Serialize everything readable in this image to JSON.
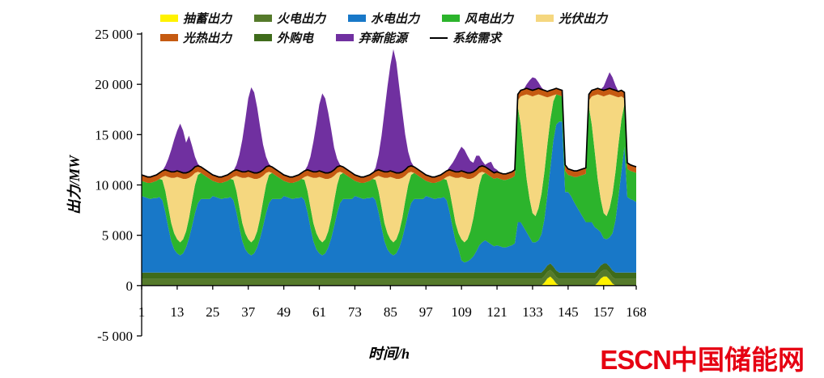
{
  "watermark": {
    "escn": "ESCN",
    "site": "中国储能网",
    "color": "#e60012"
  },
  "chart_data": {
    "type": "area",
    "stacked": true,
    "title": "",
    "xlabel": "时间/h",
    "ylabel": "出力/MW",
    "x_start": 1,
    "x_end": 168,
    "ylim": [
      -5000,
      25000
    ],
    "grid": false,
    "legend_position": "top",
    "x_ticks": [
      1,
      13,
      25,
      37,
      49,
      61,
      73,
      85,
      97,
      109,
      121,
      133,
      145,
      157,
      168
    ],
    "y_ticks": [
      -5000,
      0,
      5000,
      10000,
      15000,
      20000,
      25000
    ],
    "y_tick_labels": [
      "-5 000",
      "0",
      "5 000",
      "10 000",
      "15 000",
      "20 000",
      "25 000"
    ],
    "legend_rows": [
      [
        "pumped-storage-output",
        "thermal-output",
        "hydro-output",
        "wind-output",
        "pv-output"
      ],
      [
        "csp-output",
        "purchased-power",
        "curtailed-renewable",
        "system-demand"
      ]
    ],
    "series": [
      {
        "id": "pumped-storage-output",
        "label": "抽蓄出力",
        "color": "#fff200",
        "type": "area",
        "values": {
          "default": 0,
          "segments": [
            {
              "start": 137,
              "values": [
                300,
                700,
                900,
                600,
                200
              ]
            },
            {
              "start": 155,
              "values": [
                300,
                700,
                900,
                900,
                600,
                200
              ]
            }
          ]
        }
      },
      {
        "id": "thermal-output",
        "label": "火电出力",
        "color": "#557a2b",
        "type": "area",
        "values": 650
      },
      {
        "id": "purchased-power",
        "label": "外购电",
        "color": "#3f6b1b",
        "type": "area",
        "values": 650
      },
      {
        "id": "hydro-output",
        "label": "水电出力",
        "color": "#1878c8",
        "type": "area",
        "values": [
          7600,
          7500,
          7400,
          7300,
          7400,
          7400,
          7500,
          7200,
          6000,
          4500,
          3100,
          2300,
          1900,
          1700,
          1900,
          2500,
          3400,
          4600,
          5900,
          6900,
          7300,
          7300,
          7300,
          7300,
          7600,
          7500,
          7400,
          7300,
          7400,
          7400,
          7500,
          7200,
          6000,
          4500,
          3100,
          2300,
          1900,
          1700,
          1900,
          2500,
          3400,
          4600,
          5900,
          6900,
          7300,
          7300,
          7300,
          7300,
          7600,
          7500,
          7400,
          7300,
          7400,
          7400,
          7500,
          7200,
          6000,
          4500,
          3100,
          2300,
          1900,
          1700,
          1900,
          2500,
          3400,
          4600,
          5900,
          6900,
          7300,
          7300,
          7300,
          7300,
          7600,
          7500,
          7400,
          7300,
          7400,
          7400,
          7500,
          7200,
          6000,
          4500,
          3100,
          2300,
          1900,
          1700,
          1900,
          2500,
          3400,
          4600,
          5900,
          6900,
          7300,
          7300,
          7300,
          7300,
          7600,
          7500,
          7400,
          7300,
          7400,
          7400,
          7500,
          7200,
          6000,
          4500,
          3100,
          2300,
          1200,
          1000,
          1100,
          1300,
          1600,
          2100,
          2700,
          3000,
          3200,
          3000,
          2800,
          2600,
          2700,
          2600,
          2500,
          2500,
          2600,
          2700,
          2900,
          5000,
          5000,
          4500,
          4000,
          3500,
          3000,
          3000,
          3200,
          3800,
          5000,
          7000,
          9500,
          12500,
          14500,
          15000,
          15000,
          8000,
          8000,
          7600,
          7000,
          6500,
          6000,
          5500,
          5000,
          5000,
          5000,
          4500,
          4000,
          3300,
          2500,
          2400,
          2900,
          3700,
          5200,
          7500,
          10000,
          12500,
          7500,
          7300,
          7200,
          7000
        ]
      },
      {
        "id": "wind-output",
        "label": "风电出力",
        "color": "#2cb42c",
        "type": "area",
        "values": [
          1500,
          1500,
          1500,
          1600,
          1600,
          1700,
          1800,
          2000,
          2100,
          2000,
          1800,
          1600,
          1400,
          1300,
          1400,
          1600,
          2000,
          2500,
          2800,
          2800,
          2600,
          2400,
          2200,
          2000,
          1500,
          1500,
          1500,
          1600,
          1600,
          1700,
          1800,
          2000,
          2100,
          2000,
          1800,
          1600,
          1400,
          1300,
          1400,
          1600,
          2000,
          2500,
          2800,
          2800,
          2600,
          2400,
          2200,
          2000,
          1500,
          1500,
          1500,
          1600,
          1600,
          1700,
          1800,
          2000,
          2100,
          2000,
          1800,
          1600,
          1400,
          1300,
          1400,
          1600,
          2000,
          2500,
          2800,
          2800,
          2600,
          2400,
          2200,
          2000,
          1500,
          1500,
          1500,
          1600,
          1600,
          1700,
          1800,
          2000,
          2100,
          2000,
          1800,
          1600,
          1400,
          1300,
          1400,
          1600,
          2000,
          2500,
          2800,
          2800,
          2600,
          2400,
          2200,
          2000,
          1500,
          1500,
          1500,
          1600,
          1600,
          1700,
          1800,
          2000,
          2100,
          2000,
          1800,
          1600,
          2100,
          2000,
          2200,
          2800,
          3800,
          5000,
          6000,
          6700,
          6700,
          6700,
          6700,
          6700,
          6700,
          6700,
          6700,
          6700,
          6700,
          6700,
          6700,
          11500,
          9700,
          7500,
          5300,
          3800,
          2900,
          2600,
          3200,
          4000,
          4700,
          5000,
          4800,
          3900,
          3000,
          2600,
          2500,
          2100,
          1700,
          2000,
          2500,
          3000,
          3600,
          4200,
          4800,
          11500,
          9700,
          7500,
          5000,
          3300,
          2500,
          2300,
          2900,
          3900,
          4800,
          5200,
          5200,
          4200,
          2800,
          2800,
          2800,
          2900
        ]
      },
      {
        "id": "pv-output",
        "label": "光伏出力",
        "color": "#f5d77f",
        "type": "area",
        "values": {
          "default": 0,
          "segments": [
            {
              "start": 8,
              "values": [
                300,
                1500,
                3000,
                4500,
                5500,
                6200,
                6400,
                6000,
                5200,
                4000,
                2500,
                1200,
                300
              ]
            },
            {
              "start": 32,
              "values": [
                300,
                1500,
                3000,
                4500,
                5500,
                6200,
                6400,
                6000,
                5200,
                4000,
                2500,
                1200,
                300
              ]
            },
            {
              "start": 56,
              "values": [
                300,
                1500,
                3000,
                4500,
                5500,
                6200,
                6400,
                6000,
                5200,
                4000,
                2500,
                1200,
                300
              ]
            },
            {
              "start": 80,
              "values": [
                300,
                1500,
                3000,
                4500,
                5500,
                6200,
                6400,
                6000,
                5200,
                4000,
                2500,
                1200,
                300
              ]
            },
            {
              "start": 104,
              "values": [
                300,
                1500,
                3000,
                4500,
                5500,
                6200,
                6400,
                6000,
                5200,
                4000,
                2500,
                1200,
                300
              ]
            },
            {
              "start": 128,
              "values": [
                600,
                2800,
                5600,
                8400,
                10300,
                11600,
                12000,
                11300,
                9800,
                7500,
                4700,
                2300,
                600
              ]
            },
            {
              "start": 152,
              "values": [
                600,
                2800,
                5600,
                8400,
                10300,
                11600,
                12000,
                11300,
                9800,
                7500,
                4700,
                2300,
                600
              ]
            }
          ]
        }
      },
      {
        "id": "csp-output",
        "label": "光热出力",
        "color": "#c55a11",
        "type": "area",
        "values": 600
      },
      {
        "id": "curtailed-renewable",
        "label": "弃新能源",
        "color": "#7030a0",
        "type": "area",
        "values": {
          "default": 0,
          "segments": [
            {
              "start": 9,
              "values": [
                400,
                1200,
                2200,
                3200,
                4000,
                4800,
                4200,
                3000,
                3600,
                2400,
                1000,
                200
              ]
            },
            {
              "start": 33,
              "values": [
                500,
                1600,
                3200,
                5200,
                7200,
                8400,
                8000,
                6500,
                4500,
                2500,
                1000,
                200
              ]
            },
            {
              "start": 57,
              "values": [
                400,
                1400,
                3000,
                4800,
                6600,
                7800,
                7400,
                6000,
                4200,
                2200,
                800,
                100
              ]
            },
            {
              "start": 80,
              "values": [
                300,
                1500,
                3500,
                6000,
                8500,
                10500,
                12200,
                11000,
                8500,
                6000,
                3500,
                1500,
                400
              ]
            },
            {
              "start": 105,
              "values": [
                300,
                800,
                1400,
                2000,
                2400,
                2200,
                1700,
                1200,
                900,
                1400,
                1100,
                500,
                200,
                600,
                900,
                500,
                200
              ]
            },
            {
              "start": 131,
              "values": [
                400,
                900,
                1300,
                1100,
                600,
                200
              ]
            },
            {
              "start": 157,
              "values": [
                400,
                1000,
                1600,
                1200,
                500
              ]
            }
          ]
        }
      },
      {
        "id": "system-demand",
        "label": "系统需求",
        "color": "#000000",
        "type": "line",
        "values": [
          11000,
          10900,
          10800,
          10800,
          10900,
          11000,
          11200,
          11400,
          11500,
          11400,
          11300,
          11300,
          11400,
          11300,
          11200,
          11200,
          11300,
          11500,
          11800,
          11900,
          11800,
          11600,
          11400,
          11200,
          11000,
          10900,
          10800,
          10800,
          10900,
          11000,
          11200,
          11400,
          11500,
          11400,
          11300,
          11300,
          11400,
          11300,
          11200,
          11200,
          11300,
          11500,
          11800,
          11900,
          11800,
          11600,
          11400,
          11200,
          11000,
          10900,
          10800,
          10800,
          10900,
          11000,
          11200,
          11400,
          11500,
          11400,
          11300,
          11300,
          11400,
          11300,
          11200,
          11200,
          11300,
          11500,
          11800,
          11900,
          11800,
          11600,
          11400,
          11200,
          11000,
          10900,
          10800,
          10800,
          10900,
          11000,
          11200,
          11400,
          11500,
          11400,
          11300,
          11300,
          11400,
          11300,
          11200,
          11200,
          11300,
          11500,
          11800,
          11900,
          11800,
          11600,
          11400,
          11200,
          11000,
          10900,
          10800,
          10800,
          10900,
          11000,
          11200,
          11400,
          11500,
          11400,
          11300,
          11300,
          11400,
          11300,
          11200,
          11200,
          11300,
          11500,
          11800,
          11900,
          11800,
          11600,
          11400,
          11200,
          11300,
          11200,
          11100,
          11100,
          11200,
          11300,
          11500,
          19000,
          19400,
          19500,
          19600,
          19500,
          19400,
          19500,
          19600,
          19500,
          19400,
          19300,
          19400,
          19500,
          19600,
          19500,
          19400,
          12000,
          11600,
          11500,
          11400,
          11400,
          11500,
          11600,
          11700,
          19000,
          19400,
          19500,
          19600,
          19500,
          19400,
          19500,
          19600,
          19500,
          19400,
          19300,
          19400,
          19200,
          12200,
          12000,
          11900,
          11800
        ]
      }
    ]
  }
}
